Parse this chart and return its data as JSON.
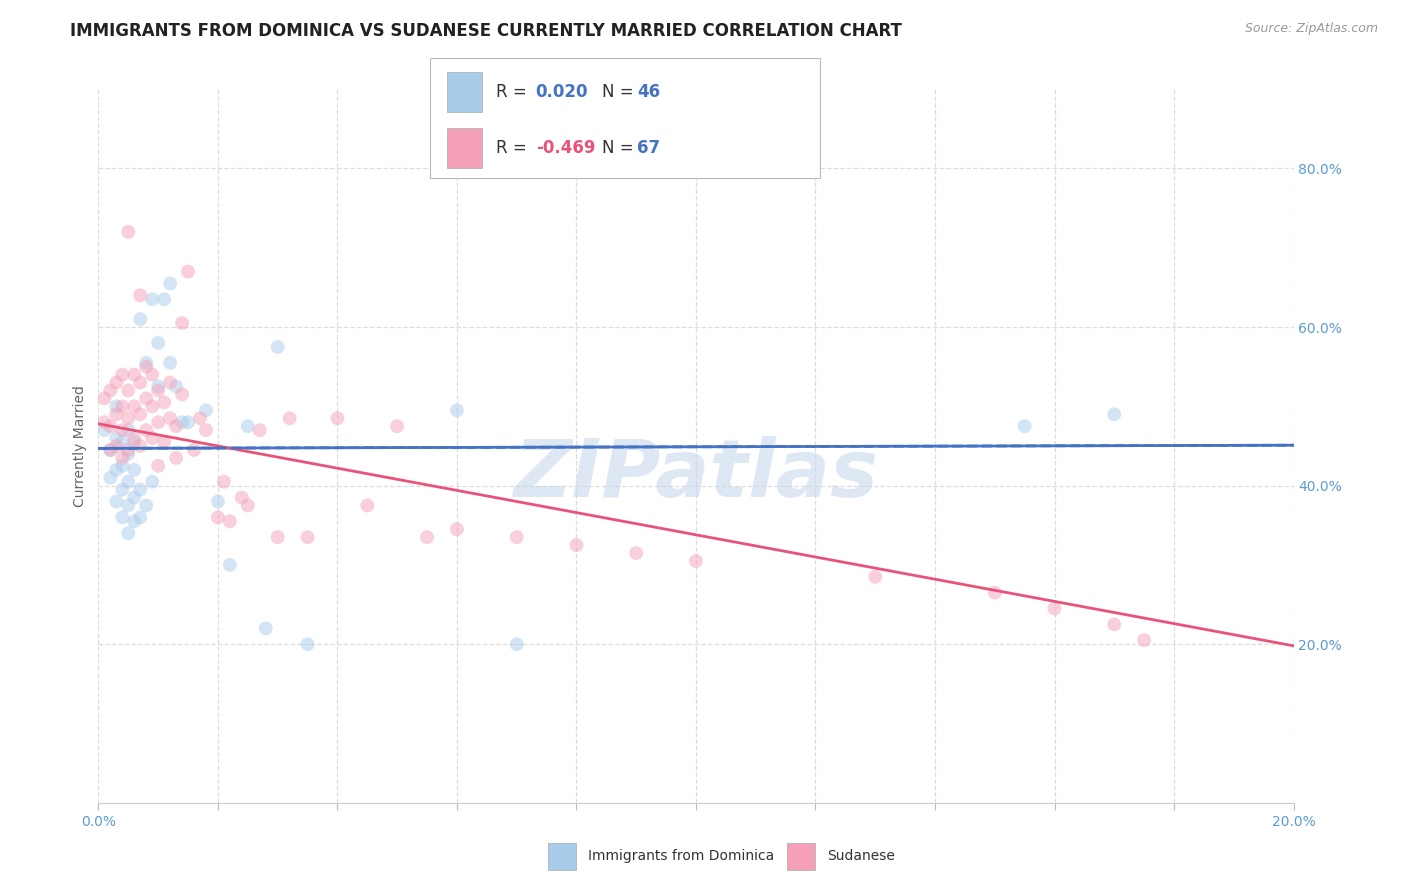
{
  "title": "IMMIGRANTS FROM DOMINICA VS SUDANESE CURRENTLY MARRIED CORRELATION CHART",
  "source": "Source: ZipAtlas.com",
  "ylabel": "Currently Married",
  "watermark": "ZIPatlas",
  "series": [
    {
      "name": "Immigrants from Dominica",
      "R": 0.02,
      "N": 46,
      "dot_color": "#A8CCEA",
      "line_color": "#4472C4",
      "line_style": "-",
      "x": [
        0.001,
        0.002,
        0.002,
        0.003,
        0.003,
        0.003,
        0.003,
        0.004,
        0.004,
        0.004,
        0.004,
        0.005,
        0.005,
        0.005,
        0.005,
        0.005,
        0.006,
        0.006,
        0.006,
        0.006,
        0.007,
        0.007,
        0.007,
        0.008,
        0.008,
        0.009,
        0.009,
        0.01,
        0.01,
        0.011,
        0.012,
        0.012,
        0.013,
        0.014,
        0.015,
        0.018,
        0.02,
        0.022,
        0.025,
        0.028,
        0.03,
        0.035,
        0.06,
        0.07,
        0.155,
        0.17
      ],
      "y": [
        0.47,
        0.41,
        0.445,
        0.38,
        0.42,
        0.46,
        0.5,
        0.36,
        0.395,
        0.425,
        0.455,
        0.34,
        0.375,
        0.405,
        0.44,
        0.47,
        0.355,
        0.385,
        0.42,
        0.455,
        0.36,
        0.395,
        0.61,
        0.375,
        0.555,
        0.405,
        0.635,
        0.525,
        0.58,
        0.635,
        0.555,
        0.655,
        0.525,
        0.48,
        0.48,
        0.495,
        0.38,
        0.3,
        0.475,
        0.22,
        0.575,
        0.2,
        0.495,
        0.2,
        0.475,
        0.49
      ],
      "trend_x": [
        0.0,
        0.2
      ],
      "trend_y": [
        0.447,
        0.451
      ]
    },
    {
      "name": "Sudanese",
      "R": -0.469,
      "N": 67,
      "dot_color": "#F4A0B8",
      "line_color": "#E8537A",
      "line_style": "-",
      "x": [
        0.001,
        0.001,
        0.002,
        0.002,
        0.002,
        0.003,
        0.003,
        0.003,
        0.004,
        0.004,
        0.004,
        0.004,
        0.005,
        0.005,
        0.005,
        0.005,
        0.006,
        0.006,
        0.006,
        0.007,
        0.007,
        0.007,
        0.007,
        0.008,
        0.008,
        0.008,
        0.009,
        0.009,
        0.009,
        0.01,
        0.01,
        0.01,
        0.011,
        0.011,
        0.012,
        0.012,
        0.013,
        0.013,
        0.014,
        0.014,
        0.015,
        0.016,
        0.017,
        0.018,
        0.02,
        0.021,
        0.022,
        0.024,
        0.025,
        0.027,
        0.03,
        0.032,
        0.035,
        0.04,
        0.045,
        0.05,
        0.055,
        0.06,
        0.07,
        0.08,
        0.09,
        0.1,
        0.13,
        0.15,
        0.16,
        0.17,
        0.175
      ],
      "y": [
        0.48,
        0.51,
        0.445,
        0.475,
        0.52,
        0.45,
        0.49,
        0.53,
        0.435,
        0.47,
        0.5,
        0.54,
        0.445,
        0.485,
        0.52,
        0.72,
        0.46,
        0.5,
        0.54,
        0.45,
        0.49,
        0.53,
        0.64,
        0.47,
        0.51,
        0.55,
        0.46,
        0.5,
        0.54,
        0.48,
        0.52,
        0.425,
        0.505,
        0.455,
        0.485,
        0.53,
        0.435,
        0.475,
        0.515,
        0.605,
        0.67,
        0.445,
        0.485,
        0.47,
        0.36,
        0.405,
        0.355,
        0.385,
        0.375,
        0.47,
        0.335,
        0.485,
        0.335,
        0.485,
        0.375,
        0.475,
        0.335,
        0.345,
        0.335,
        0.325,
        0.315,
        0.305,
        0.285,
        0.265,
        0.245,
        0.225,
        0.205
      ],
      "trend_x": [
        0.0,
        0.2
      ],
      "trend_y": [
        0.478,
        0.198
      ]
    }
  ],
  "xlim": [
    0.0,
    0.2
  ],
  "ylim": [
    0.0,
    0.9
  ],
  "right_yticks": [
    0.2,
    0.4,
    0.6,
    0.8
  ],
  "right_yticklabels": [
    "20.0%",
    "40.0%",
    "60.0%",
    "80.0%"
  ],
  "xtick_positions": [
    0.0,
    0.02,
    0.04,
    0.06,
    0.08,
    0.1,
    0.12,
    0.14,
    0.16,
    0.18,
    0.2
  ],
  "xtick_labels": [
    "0.0%",
    "",
    "",
    "",
    "",
    "",
    "",
    "",
    "",
    "",
    "20.0%"
  ],
  "grid_yticks": [
    0.2,
    0.4,
    0.6,
    0.8
  ],
  "grid_xticks": [
    0.0,
    0.02,
    0.04,
    0.06,
    0.08,
    0.1,
    0.12,
    0.14,
    0.16,
    0.18,
    0.2
  ],
  "grid_color": "#DDDDDD",
  "background_color": "#FFFFFF",
  "marker_size": 100,
  "marker_alpha": 0.5,
  "title_color": "#222222",
  "title_fontsize": 12,
  "ylabel_fontsize": 10,
  "tick_fontsize": 10,
  "tick_color": "#5B9BD5",
  "source_color": "#999999",
  "watermark_color": "#C8D8EE",
  "watermark_alpha": 0.6,
  "watermark_fontsize": 58,
  "legend_text_dark": "#333333",
  "legend_val_blue": "#4472C4",
  "legend_val_pink": "#E8537A"
}
